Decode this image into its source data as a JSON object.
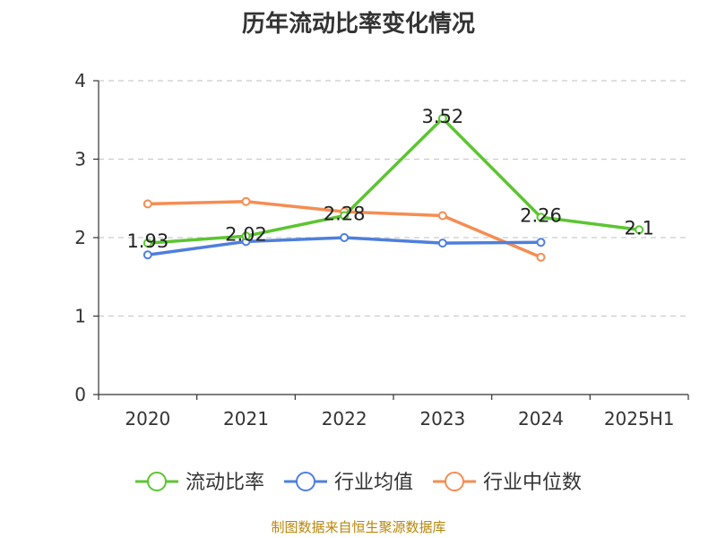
{
  "chart_data": {
    "type": "line",
    "title": "历年流动比率变化情况",
    "categories": [
      "2020",
      "2021",
      "2022",
      "2023",
      "2024",
      "2025H1"
    ],
    "ylim": [
      0,
      4
    ],
    "yticks": [
      "0",
      "1",
      "2",
      "3",
      "4"
    ],
    "grid": "horizontal dashed",
    "legend_position": "bottom",
    "series": [
      {
        "name": "流动比率",
        "color": "#5cc531",
        "values": [
          1.93,
          2.02,
          2.28,
          3.52,
          2.26,
          2.1
        ],
        "labels": [
          "1.93",
          "2.02",
          "2.28",
          "3.52",
          "2.26",
          "2.1"
        ]
      },
      {
        "name": "行业均值",
        "color": "#4f7fdc",
        "values": [
          1.78,
          1.95,
          2.0,
          1.93,
          1.94,
          null
        ]
      },
      {
        "name": "行业中位数",
        "color": "#f58d53",
        "values": [
          2.43,
          2.46,
          2.33,
          2.28,
          1.75,
          null
        ]
      }
    ]
  },
  "footer": {
    "source": "制图数据来自恒生聚源数据库"
  }
}
